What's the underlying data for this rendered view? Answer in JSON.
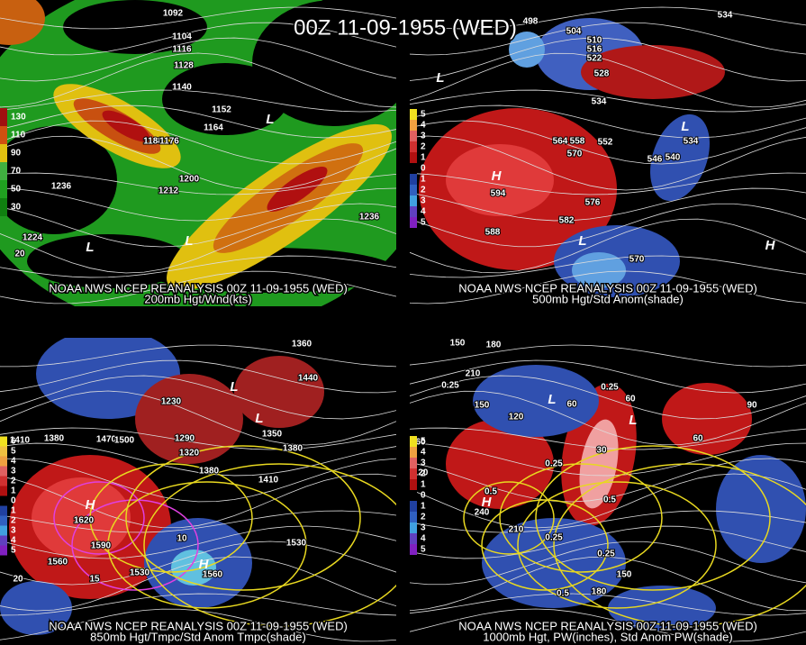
{
  "title": "00Z 11-09-1955 (WED)",
  "panels": [
    {
      "source": "NOAA NWS NCEP REANALYSIS 00Z 11-09-1955 (WED)",
      "caption": "200mb Hgt/Wnd(kts)",
      "scale": [
        "130",
        "110",
        "90",
        "70",
        "50",
        "30"
      ],
      "labels": [
        "1092",
        "1104",
        "1116",
        "1128",
        "1140",
        "1152",
        "1164",
        "1188",
        "1176",
        "1200",
        "1212",
        "1236",
        "1224",
        "1236",
        "L",
        "L",
        "L",
        "20"
      ]
    },
    {
      "source": "NOAA NWS NCEP REANALYSIS 00Z 11-09-1955 (WED)",
      "caption": "500mb Hgt/Std Anom(shade)",
      "scale": [
        "5",
        "4",
        "3",
        "2",
        "1",
        "0",
        "1",
        "2",
        "3",
        "4",
        "5"
      ],
      "labels": [
        "534",
        "498",
        "504",
        "510",
        "516",
        "522",
        "528",
        "534",
        "552",
        "558",
        "564",
        "570",
        "546",
        "540",
        "534",
        "594",
        "576",
        "582",
        "588",
        "570",
        "H",
        "L",
        "L",
        "L",
        "H"
      ]
    },
    {
      "source": "NOAA NWS NCEP REANALYSIS 00Z 11-09-1955 (WED)",
      "caption": "850mb Hgt/Tmpc/Std Anom Tmpc(shade)",
      "scale": [
        "6",
        "5",
        "4",
        "3",
        "2",
        "1",
        "0",
        "1",
        "2",
        "3",
        "4",
        "5"
      ],
      "labels": [
        "1410",
        "1380",
        "1470",
        "1500",
        "1230",
        "1290",
        "1320",
        "1380",
        "1410",
        "1440",
        "1350",
        "1380",
        "1360",
        "1620",
        "1590",
        "1560",
        "1530",
        "1530",
        "1560",
        "10",
        "15",
        "20",
        "H",
        "H",
        "L",
        "L"
      ]
    },
    {
      "source": "NOAA NWS NCEP REANALYSIS 00Z 11-09-1955 (WED)",
      "caption": "1000mb Hgt, PW(inches), Std Anom PW(shade)",
      "scale": [
        "5",
        "4",
        "3",
        "2",
        "1",
        "0",
        "1",
        "2",
        "3",
        "4",
        "5"
      ],
      "labels": [
        "150",
        "180",
        "210",
        "0.25",
        "150",
        "120",
        "60",
        "0.25",
        "60",
        "30",
        "60",
        "90",
        "60",
        "120",
        "0.5",
        "0.25",
        "0.5",
        "240",
        "210",
        "0.25",
        "0.25",
        "0.5",
        "150",
        "180",
        "L",
        "L",
        "H"
      ]
    }
  ]
}
